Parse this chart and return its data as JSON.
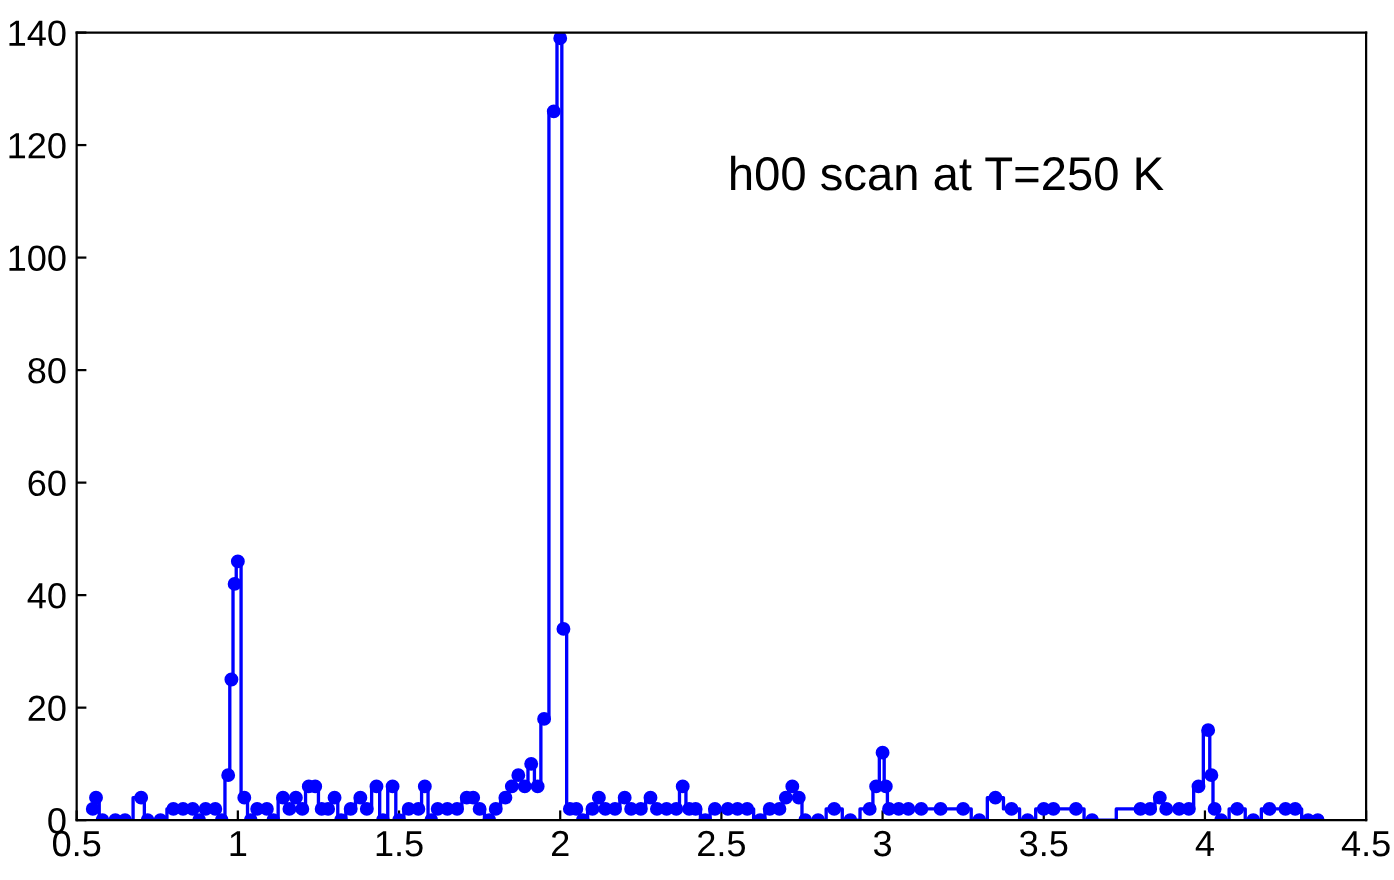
{
  "chart_data": {
    "type": "step",
    "xlim": [
      0.5,
      4.5
    ],
    "ylim": [
      0,
      140
    ],
    "xticks": [
      0.5,
      1,
      1.5,
      2,
      2.5,
      3,
      3.5,
      4,
      4.5
    ],
    "yticks": [
      0,
      20,
      40,
      60,
      80,
      100,
      120,
      140
    ],
    "grid": false,
    "marker": "circle",
    "line_style": "solid",
    "annotations": [
      "h00 scan at T=250 K"
    ],
    "series": [
      {
        "color": "#0000ff",
        "x": [
          0.55,
          0.56,
          0.58,
          0.62,
          0.65,
          0.7,
          0.72,
          0.76,
          0.8,
          0.83,
          0.86,
          0.88,
          0.9,
          0.93,
          0.95,
          0.97,
          0.98,
          0.99,
          1.0,
          1.02,
          1.04,
          1.06,
          1.09,
          1.11,
          1.14,
          1.16,
          1.18,
          1.2,
          1.22,
          1.24,
          1.26,
          1.28,
          1.3,
          1.32,
          1.35,
          1.38,
          1.4,
          1.43,
          1.45,
          1.48,
          1.5,
          1.53,
          1.56,
          1.58,
          1.6,
          1.62,
          1.65,
          1.68,
          1.71,
          1.73,
          1.75,
          1.78,
          1.8,
          1.83,
          1.85,
          1.87,
          1.89,
          1.91,
          1.93,
          1.95,
          1.98,
          2.0,
          2.01,
          2.03,
          2.05,
          2.07,
          2.1,
          2.12,
          2.14,
          2.17,
          2.2,
          2.22,
          2.25,
          2.28,
          2.3,
          2.33,
          2.36,
          2.38,
          2.4,
          2.42,
          2.45,
          2.48,
          2.52,
          2.55,
          2.58,
          2.62,
          2.65,
          2.68,
          2.7,
          2.72,
          2.74,
          2.76,
          2.8,
          2.85,
          2.9,
          2.96,
          2.98,
          3.0,
          3.01,
          3.02,
          3.05,
          3.08,
          3.12,
          3.18,
          3.25,
          3.3,
          3.35,
          3.4,
          3.45,
          3.5,
          3.53,
          3.6,
          3.65,
          3.8,
          3.83,
          3.86,
          3.88,
          3.92,
          3.95,
          3.98,
          4.01,
          4.02,
          4.03,
          4.05,
          4.1,
          4.15,
          4.2,
          4.25,
          4.28,
          4.32,
          4.35
        ],
        "values": [
          2,
          4,
          0,
          0,
          0,
          4,
          0,
          0,
          2,
          2,
          2,
          0,
          2,
          2,
          0,
          8,
          25,
          42,
          46,
          4,
          0,
          2,
          2,
          0,
          4,
          2,
          4,
          2,
          6,
          6,
          2,
          2,
          4,
          0,
          2,
          4,
          2,
          6,
          0,
          6,
          0,
          2,
          2,
          6,
          0,
          2,
          2,
          2,
          4,
          4,
          2,
          0,
          2,
          4,
          6,
          8,
          6,
          10,
          6,
          18,
          126,
          139,
          34,
          2,
          2,
          0,
          2,
          4,
          2,
          2,
          4,
          2,
          2,
          4,
          2,
          2,
          2,
          6,
          2,
          2,
          0,
          2,
          2,
          2,
          2,
          0,
          2,
          2,
          4,
          6,
          4,
          0,
          0,
          2,
          0,
          2,
          6,
          12,
          6,
          2,
          2,
          2,
          2,
          2,
          2,
          0,
          4,
          2,
          0,
          2,
          2,
          2,
          0,
          2,
          2,
          4,
          2,
          2,
          2,
          6,
          16,
          8,
          2,
          0,
          2,
          0,
          2,
          2,
          2,
          0,
          0
        ]
      }
    ]
  }
}
